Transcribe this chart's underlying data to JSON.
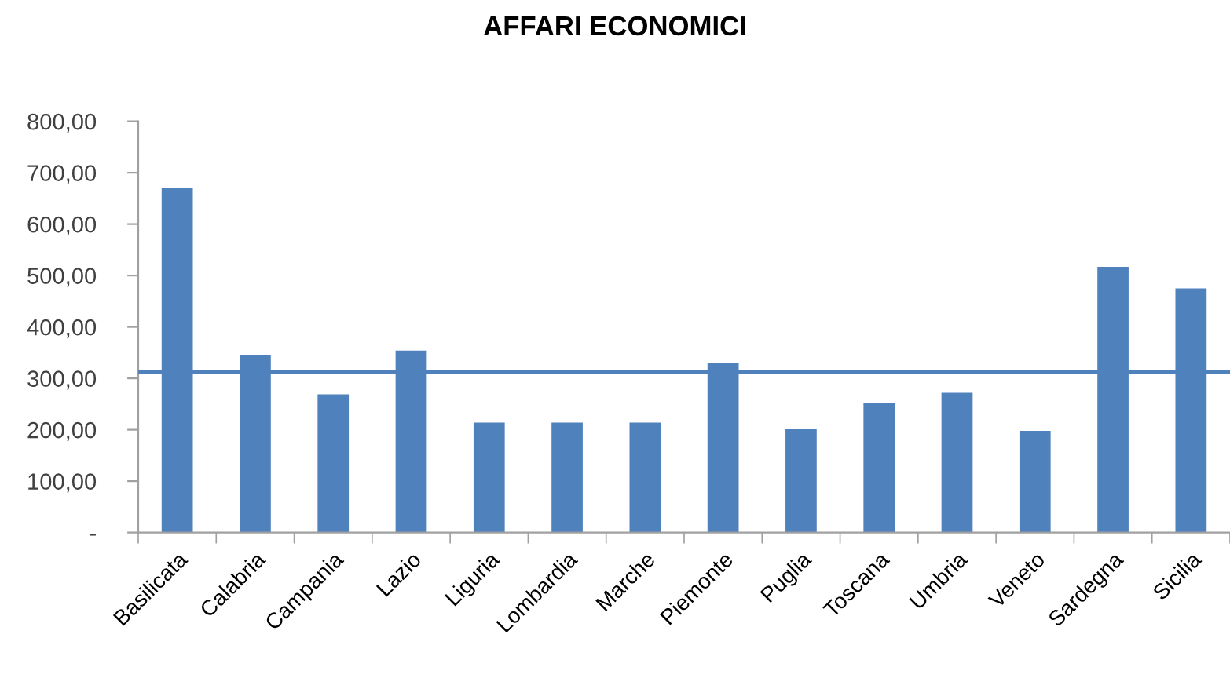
{
  "chart_data": {
    "type": "bar",
    "title": "AFFARI ECONOMICI",
    "categories": [
      "Basilicata",
      "Calabria",
      "Campania",
      "Lazio",
      "Liguria",
      "Lombardia",
      "Marche",
      "Piemonte",
      "Puglia",
      "Toscana",
      "Umbria",
      "Veneto",
      "Sardegna",
      "Sicilia"
    ],
    "values": [
      670,
      345,
      269,
      354,
      214,
      214,
      214,
      329,
      201,
      252,
      272,
      198,
      517,
      475
    ],
    "color": "#4f81bd",
    "ylim": [
      0,
      800
    ],
    "yticks": [
      {
        "value": 0,
        "label": "-"
      },
      {
        "value": 100,
        "label": "100,00"
      },
      {
        "value": 200,
        "label": "200,00"
      },
      {
        "value": 300,
        "label": "300,00"
      },
      {
        "value": 400,
        "label": "400,00"
      },
      {
        "value": 500,
        "label": "500,00"
      },
      {
        "value": 600,
        "label": "600,00"
      },
      {
        "value": 700,
        "label": "700,00"
      },
      {
        "value": 800,
        "label": "800,00"
      }
    ],
    "ref_lines": [
      {
        "axis": "y",
        "value": 313,
        "color": "#4f81bd"
      }
    ],
    "grid": false,
    "legend": false
  }
}
